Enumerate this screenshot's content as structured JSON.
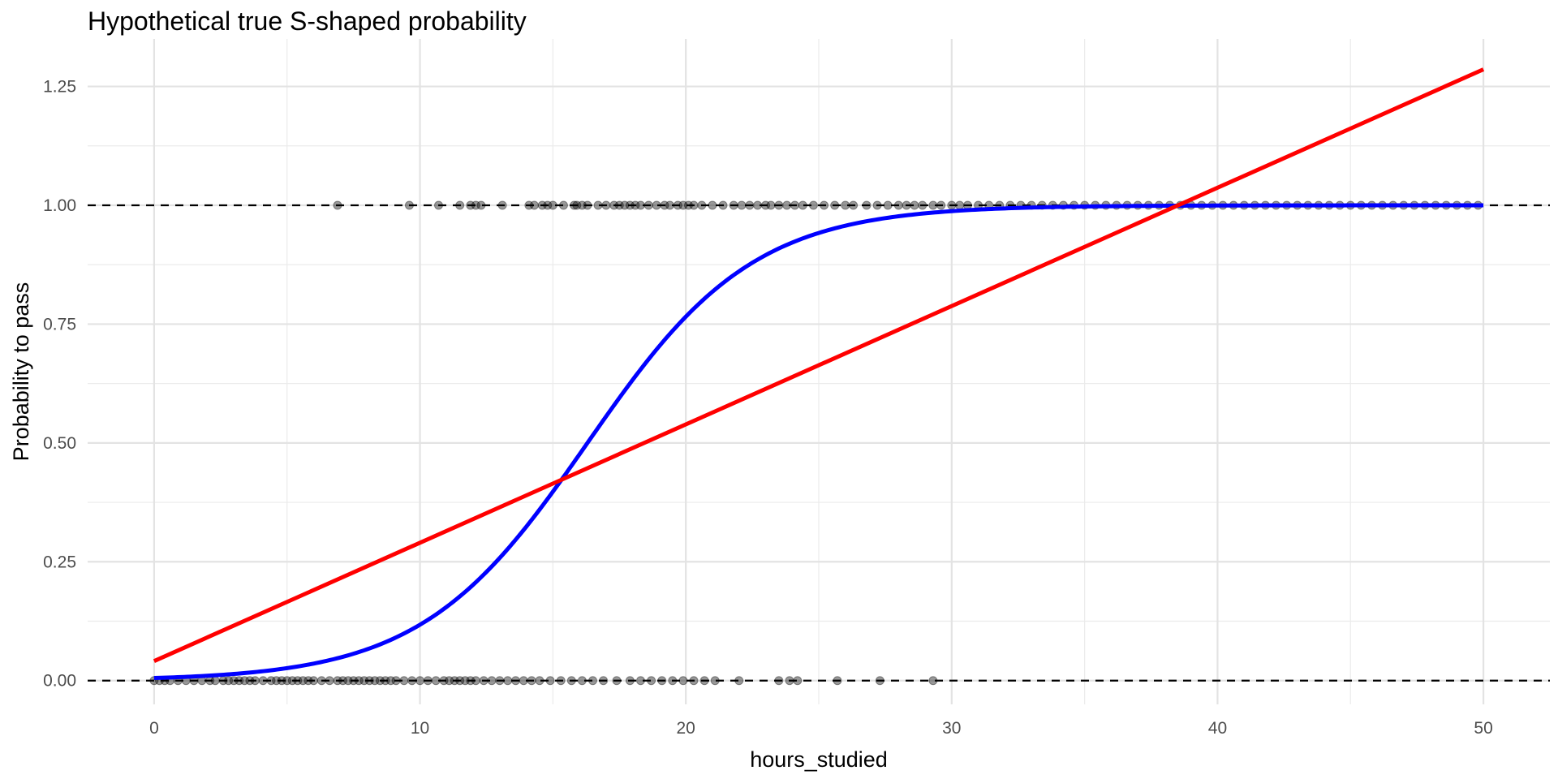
{
  "chart_data": {
    "type": "scatter",
    "title": "Hypothetical true S-shaped probability",
    "xlabel": "hours_studied",
    "ylabel": "Probability to pass",
    "xlim": [
      -2.5,
      52.5
    ],
    "ylim": [
      -0.05,
      1.35
    ],
    "x_ticks": [
      0,
      10,
      20,
      30,
      40,
      50
    ],
    "x_tick_labels": [
      "0",
      "10",
      "20",
      "30",
      "40",
      "50"
    ],
    "y_ticks": [
      0,
      0.25,
      0.5,
      0.75,
      1.0,
      1.25
    ],
    "y_tick_labels": [
      "0.00",
      "0.25",
      "0.50",
      "0.75",
      "1.00",
      "1.25"
    ],
    "grid": true,
    "reference_lines": [
      {
        "y": 0,
        "style": "dashed",
        "color": "#000000"
      },
      {
        "y": 1,
        "style": "dashed",
        "color": "#000000"
      }
    ],
    "series": [
      {
        "kind": "points",
        "color": "#000000",
        "opacity": 0.4,
        "y": 1,
        "x": [
          6.9,
          9.6,
          10.7,
          11.5,
          11.9,
          12.1,
          12.3,
          13.1,
          14.1,
          14.3,
          14.6,
          14.8,
          15.0,
          15.4,
          15.8,
          15.9,
          16.1,
          16.3,
          16.7,
          17.0,
          17.3,
          17.5,
          17.7,
          17.9,
          18.1,
          18.3,
          18.6,
          18.9,
          19.2,
          19.4,
          19.7,
          19.9,
          20.1,
          20.3,
          20.6,
          21.0,
          21.4,
          21.8,
          22.1,
          22.4,
          22.7,
          23.0,
          23.2,
          23.5,
          23.8,
          24.1,
          24.4,
          24.8,
          25.2,
          25.6,
          26.0,
          26.3,
          26.8,
          27.2,
          27.6,
          28.0,
          28.3,
          28.6,
          28.9,
          29.3,
          29.6,
          30.0,
          30.3,
          30.6,
          31.0,
          31.4,
          31.8,
          32.2,
          32.6,
          33.0,
          33.4,
          33.8,
          34.2,
          34.6,
          35.0,
          35.4,
          35.8,
          36.2,
          36.6,
          37.0,
          37.4,
          37.8,
          38.2,
          38.6,
          39.0,
          39.4,
          39.8,
          40.2,
          40.6,
          41.0,
          41.4,
          41.8,
          42.2,
          42.6,
          43.0,
          43.4,
          43.8,
          44.2,
          44.6,
          45.0,
          45.4,
          45.8,
          46.2,
          46.6,
          47.0,
          47.4,
          47.8,
          48.2,
          48.6,
          49.0,
          49.4,
          49.8
        ]
      },
      {
        "kind": "points",
        "color": "#000000",
        "opacity": 0.4,
        "y": 0,
        "x": [
          0.0,
          0.2,
          0.4,
          0.6,
          0.9,
          1.2,
          1.5,
          1.8,
          2.1,
          2.3,
          2.6,
          2.8,
          3.0,
          3.2,
          3.4,
          3.6,
          3.8,
          4.1,
          4.4,
          4.6,
          4.8,
          5.0,
          5.2,
          5.4,
          5.6,
          5.8,
          6.0,
          6.3,
          6.6,
          6.9,
          7.1,
          7.3,
          7.5,
          7.7,
          7.9,
          8.1,
          8.3,
          8.5,
          8.7,
          8.9,
          9.1,
          9.4,
          9.7,
          10.0,
          10.3,
          10.6,
          10.9,
          11.1,
          11.3,
          11.5,
          11.7,
          11.9,
          12.1,
          12.4,
          12.7,
          13.0,
          13.3,
          13.6,
          13.9,
          14.2,
          14.5,
          14.9,
          15.3,
          15.7,
          16.1,
          16.5,
          16.9,
          17.4,
          17.9,
          18.3,
          18.7,
          19.1,
          19.5,
          19.9,
          20.3,
          20.7,
          21.1,
          22.0,
          23.5,
          23.9,
          24.2,
          25.7,
          27.3,
          29.3
        ]
      },
      {
        "kind": "curve",
        "name": "",
        "color": "#0000ff",
        "function": "logistic",
        "midpoint": 16.3,
        "rate": 0.32,
        "x_range": [
          0,
          50
        ]
      },
      {
        "kind": "line",
        "name": "",
        "color": "#ff0000",
        "x": [
          0,
          50
        ],
        "y": [
          0.041,
          1.286
        ]
      }
    ]
  }
}
